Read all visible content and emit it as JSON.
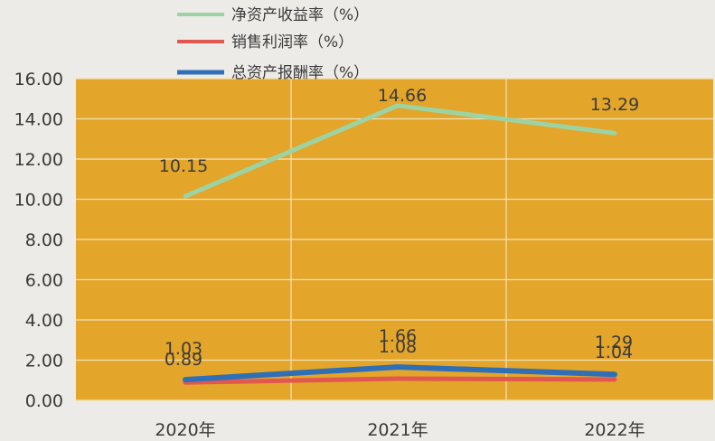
{
  "chart_data": {
    "type": "line",
    "title": "",
    "xlabel": "",
    "ylabel": "",
    "categories": [
      "2020年",
      "2021年",
      "2022年"
    ],
    "ylim": [
      0,
      16
    ],
    "yticks": [
      "0.00",
      "2.00",
      "4.00",
      "6.00",
      "8.00",
      "10.00",
      "12.00",
      "14.00",
      "16.00"
    ],
    "grid": true,
    "legend_position": "top",
    "plot_background": "#e3a52a",
    "series": [
      {
        "name": "净资产收益率（%）",
        "values": [
          10.15,
          14.66,
          13.29
        ],
        "labels": [
          "10.15",
          "14.66",
          "13.29"
        ],
        "color": "#9cd3a5"
      },
      {
        "name": "销售利润率（%）",
        "values": [
          0.89,
          1.08,
          1.04
        ],
        "labels": [
          "0.89",
          "1.08",
          "1.04"
        ],
        "color": "#e0584f"
      },
      {
        "name": "总资产报酬率（%）",
        "values": [
          1.03,
          1.66,
          1.29
        ],
        "labels": [
          "1.03",
          "1.66",
          "1.29"
        ],
        "color": "#2f6fb8"
      }
    ]
  }
}
